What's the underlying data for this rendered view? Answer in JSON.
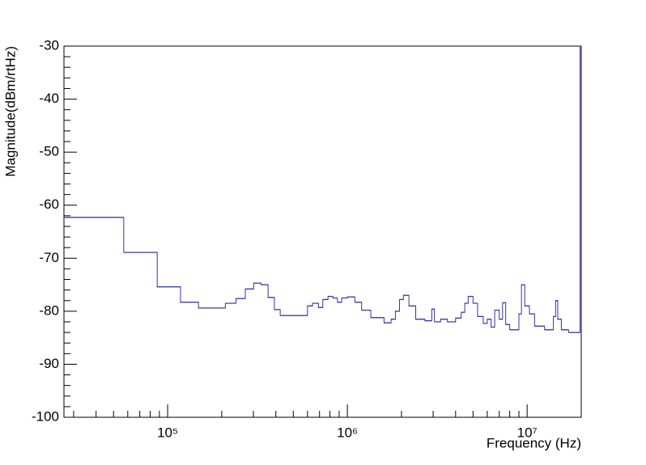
{
  "chart_data": {
    "type": "histogram",
    "x_label": "Frequency (Hz)",
    "y_label": "Magnitude(dBm/rtHz)",
    "log_x": true,
    "color": "#3333aa",
    "xlim": [
      26500,
      20000000
    ],
    "ylim": [
      -100,
      -30
    ],
    "xticks": [
      {
        "value": 100000,
        "label": "10⁵"
      },
      {
        "value": 1000000,
        "label": "10⁶"
      },
      {
        "value": 10000000,
        "label": "10⁷"
      }
    ],
    "xminorticks": [
      30000,
      40000,
      50000,
      60000,
      70000,
      80000,
      90000,
      200000,
      300000,
      400000,
      500000,
      600000,
      700000,
      800000,
      900000,
      2000000,
      3000000,
      4000000,
      5000000,
      6000000,
      7000000,
      8000000,
      9000000
    ],
    "yticks": [
      -100,
      -90,
      -80,
      -70,
      -60,
      -50,
      -40,
      -30
    ],
    "yminorticks": [
      -98,
      -96,
      -94,
      -92,
      -88,
      -86,
      -84,
      -82,
      -78,
      -76,
      -74,
      -72,
      -68,
      -66,
      -64,
      -62,
      -58,
      -56,
      -54,
      -52,
      -48,
      -46,
      -44,
      -42,
      -38,
      -36,
      -34,
      -32
    ],
    "bins": [
      26500,
      57000,
      87500,
      118000,
      148500,
      209500,
      240000,
      270500,
      301000,
      331500,
      362000,
      392500,
      423000,
      600000,
      640000,
      690000,
      730000,
      780000,
      830000,
      880000,
      930000,
      1000000,
      1100000,
      1200000,
      1350000,
      1600000,
      1750000,
      1850000,
      1950000,
      2050000,
      2200000,
      2400000,
      2700000,
      2950000,
      3050000,
      3300000,
      3600000,
      4000000,
      4300000,
      4500000,
      4700000,
      5000000,
      5300000,
      5700000,
      6000000,
      6300000,
      6600000,
      7000000,
      7300000,
      7600000,
      8000000,
      9000000,
      9300000,
      9700000,
      10300000,
      11000000,
      12500000,
      14000000,
      14400000,
      14800000,
      15500000,
      17000000,
      19700000,
      20000000
    ],
    "values": [
      -62.3,
      -68.9,
      -75.4,
      -78.3,
      -79.4,
      -78.5,
      -77.6,
      -75.8,
      -74.7,
      -75.0,
      -77.4,
      -79.7,
      -80.8,
      -79.0,
      -78.5,
      -79.3,
      -77.8,
      -77.2,
      -77.5,
      -78.3,
      -77.5,
      -77.3,
      -78.3,
      -79.8,
      -81.2,
      -82.2,
      -81.5,
      -80.0,
      -77.8,
      -77.0,
      -79.0,
      -81.5,
      -81.8,
      -79.6,
      -82.0,
      -81.5,
      -82.0,
      -81.3,
      -80.2,
      -78.5,
      -77.2,
      -78.5,
      -81.0,
      -82.3,
      -81.5,
      -83.0,
      -79.8,
      -81.5,
      -78.4,
      -82.5,
      -83.5,
      -80.5,
      -75.0,
      -79.0,
      -80.5,
      -82.8,
      -83.5,
      -81.0,
      -78.0,
      -81.5,
      -83.5,
      -84.0,
      -30
    ]
  }
}
